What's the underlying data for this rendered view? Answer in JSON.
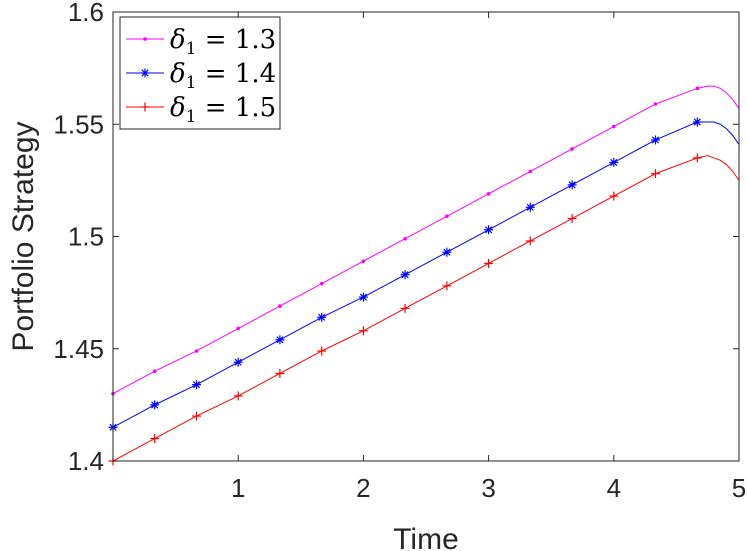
{
  "chart_data": {
    "type": "line",
    "xlabel": "Time",
    "ylabel": "Portfolio Strategy",
    "xlim": [
      0,
      5
    ],
    "ylim": [
      1.4,
      1.6
    ],
    "xticks": [
      1,
      2,
      3,
      4,
      5
    ],
    "yticks": [
      1.4,
      1.45,
      1.5,
      1.55,
      1.6
    ],
    "xtick_labels": [
      "1",
      "2",
      "3",
      "4",
      "5"
    ],
    "ytick_labels": [
      "1.4",
      "1.45",
      "1.5",
      "1.55",
      "1.6"
    ],
    "grid": false,
    "legend_position": "top-left",
    "series": [
      {
        "label_symbol": "δ",
        "label_subscript": "1",
        "label_rest": " = 1.3",
        "color": "#ff00ff",
        "marker": "point",
        "x": [
          0,
          0.333,
          0.667,
          1.0,
          1.333,
          1.667,
          2.0,
          2.333,
          2.667,
          3.0,
          3.333,
          3.667,
          4.0,
          4.333,
          4.667,
          4.75,
          4.8,
          4.85,
          4.9,
          4.95,
          5.0
        ],
        "y": [
          1.43,
          1.44,
          1.449,
          1.459,
          1.469,
          1.479,
          1.489,
          1.499,
          1.509,
          1.519,
          1.529,
          1.539,
          1.549,
          1.559,
          1.566,
          1.567,
          1.567,
          1.566,
          1.564,
          1.561,
          1.557
        ],
        "marker_x": [
          0,
          0.333,
          0.667,
          1.0,
          1.333,
          1.667,
          2.0,
          2.333,
          2.667,
          3.0,
          3.333,
          3.667,
          4.0,
          4.333,
          4.667
        ]
      },
      {
        "label_symbol": "δ",
        "label_subscript": "1",
        "label_rest": " = 1.4",
        "color": "#0000ff",
        "marker": "asterisk",
        "x": [
          0,
          0.333,
          0.667,
          1.0,
          1.333,
          1.667,
          2.0,
          2.333,
          2.667,
          3.0,
          3.333,
          3.667,
          4.0,
          4.333,
          4.667,
          4.75,
          4.8,
          4.85,
          4.9,
          4.95,
          5.0
        ],
        "y": [
          1.415,
          1.425,
          1.434,
          1.444,
          1.454,
          1.464,
          1.473,
          1.483,
          1.493,
          1.503,
          1.513,
          1.523,
          1.533,
          1.543,
          1.551,
          1.551,
          1.551,
          1.55,
          1.548,
          1.545,
          1.541
        ],
        "marker_x": [
          0,
          0.333,
          0.667,
          1.0,
          1.333,
          1.667,
          2.0,
          2.333,
          2.667,
          3.0,
          3.333,
          3.667,
          4.0,
          4.333,
          4.667
        ]
      },
      {
        "label_symbol": "δ",
        "label_subscript": "1",
        "label_rest": " = 1.5",
        "color": "#ff0000",
        "marker": "plus",
        "x": [
          0,
          0.333,
          0.667,
          1.0,
          1.333,
          1.667,
          2.0,
          2.333,
          2.667,
          3.0,
          3.333,
          3.667,
          4.0,
          4.333,
          4.667,
          4.75,
          4.8,
          4.85,
          4.9,
          4.95,
          5.0
        ],
        "y": [
          1.4,
          1.41,
          1.42,
          1.429,
          1.439,
          1.449,
          1.458,
          1.468,
          1.478,
          1.488,
          1.498,
          1.508,
          1.518,
          1.528,
          1.535,
          1.536,
          1.535,
          1.534,
          1.532,
          1.529,
          1.525
        ],
        "marker_x": [
          0,
          0.333,
          0.667,
          1.0,
          1.333,
          1.667,
          2.0,
          2.333,
          2.667,
          3.0,
          3.333,
          3.667,
          4.0,
          4.333,
          4.667
        ]
      }
    ]
  }
}
